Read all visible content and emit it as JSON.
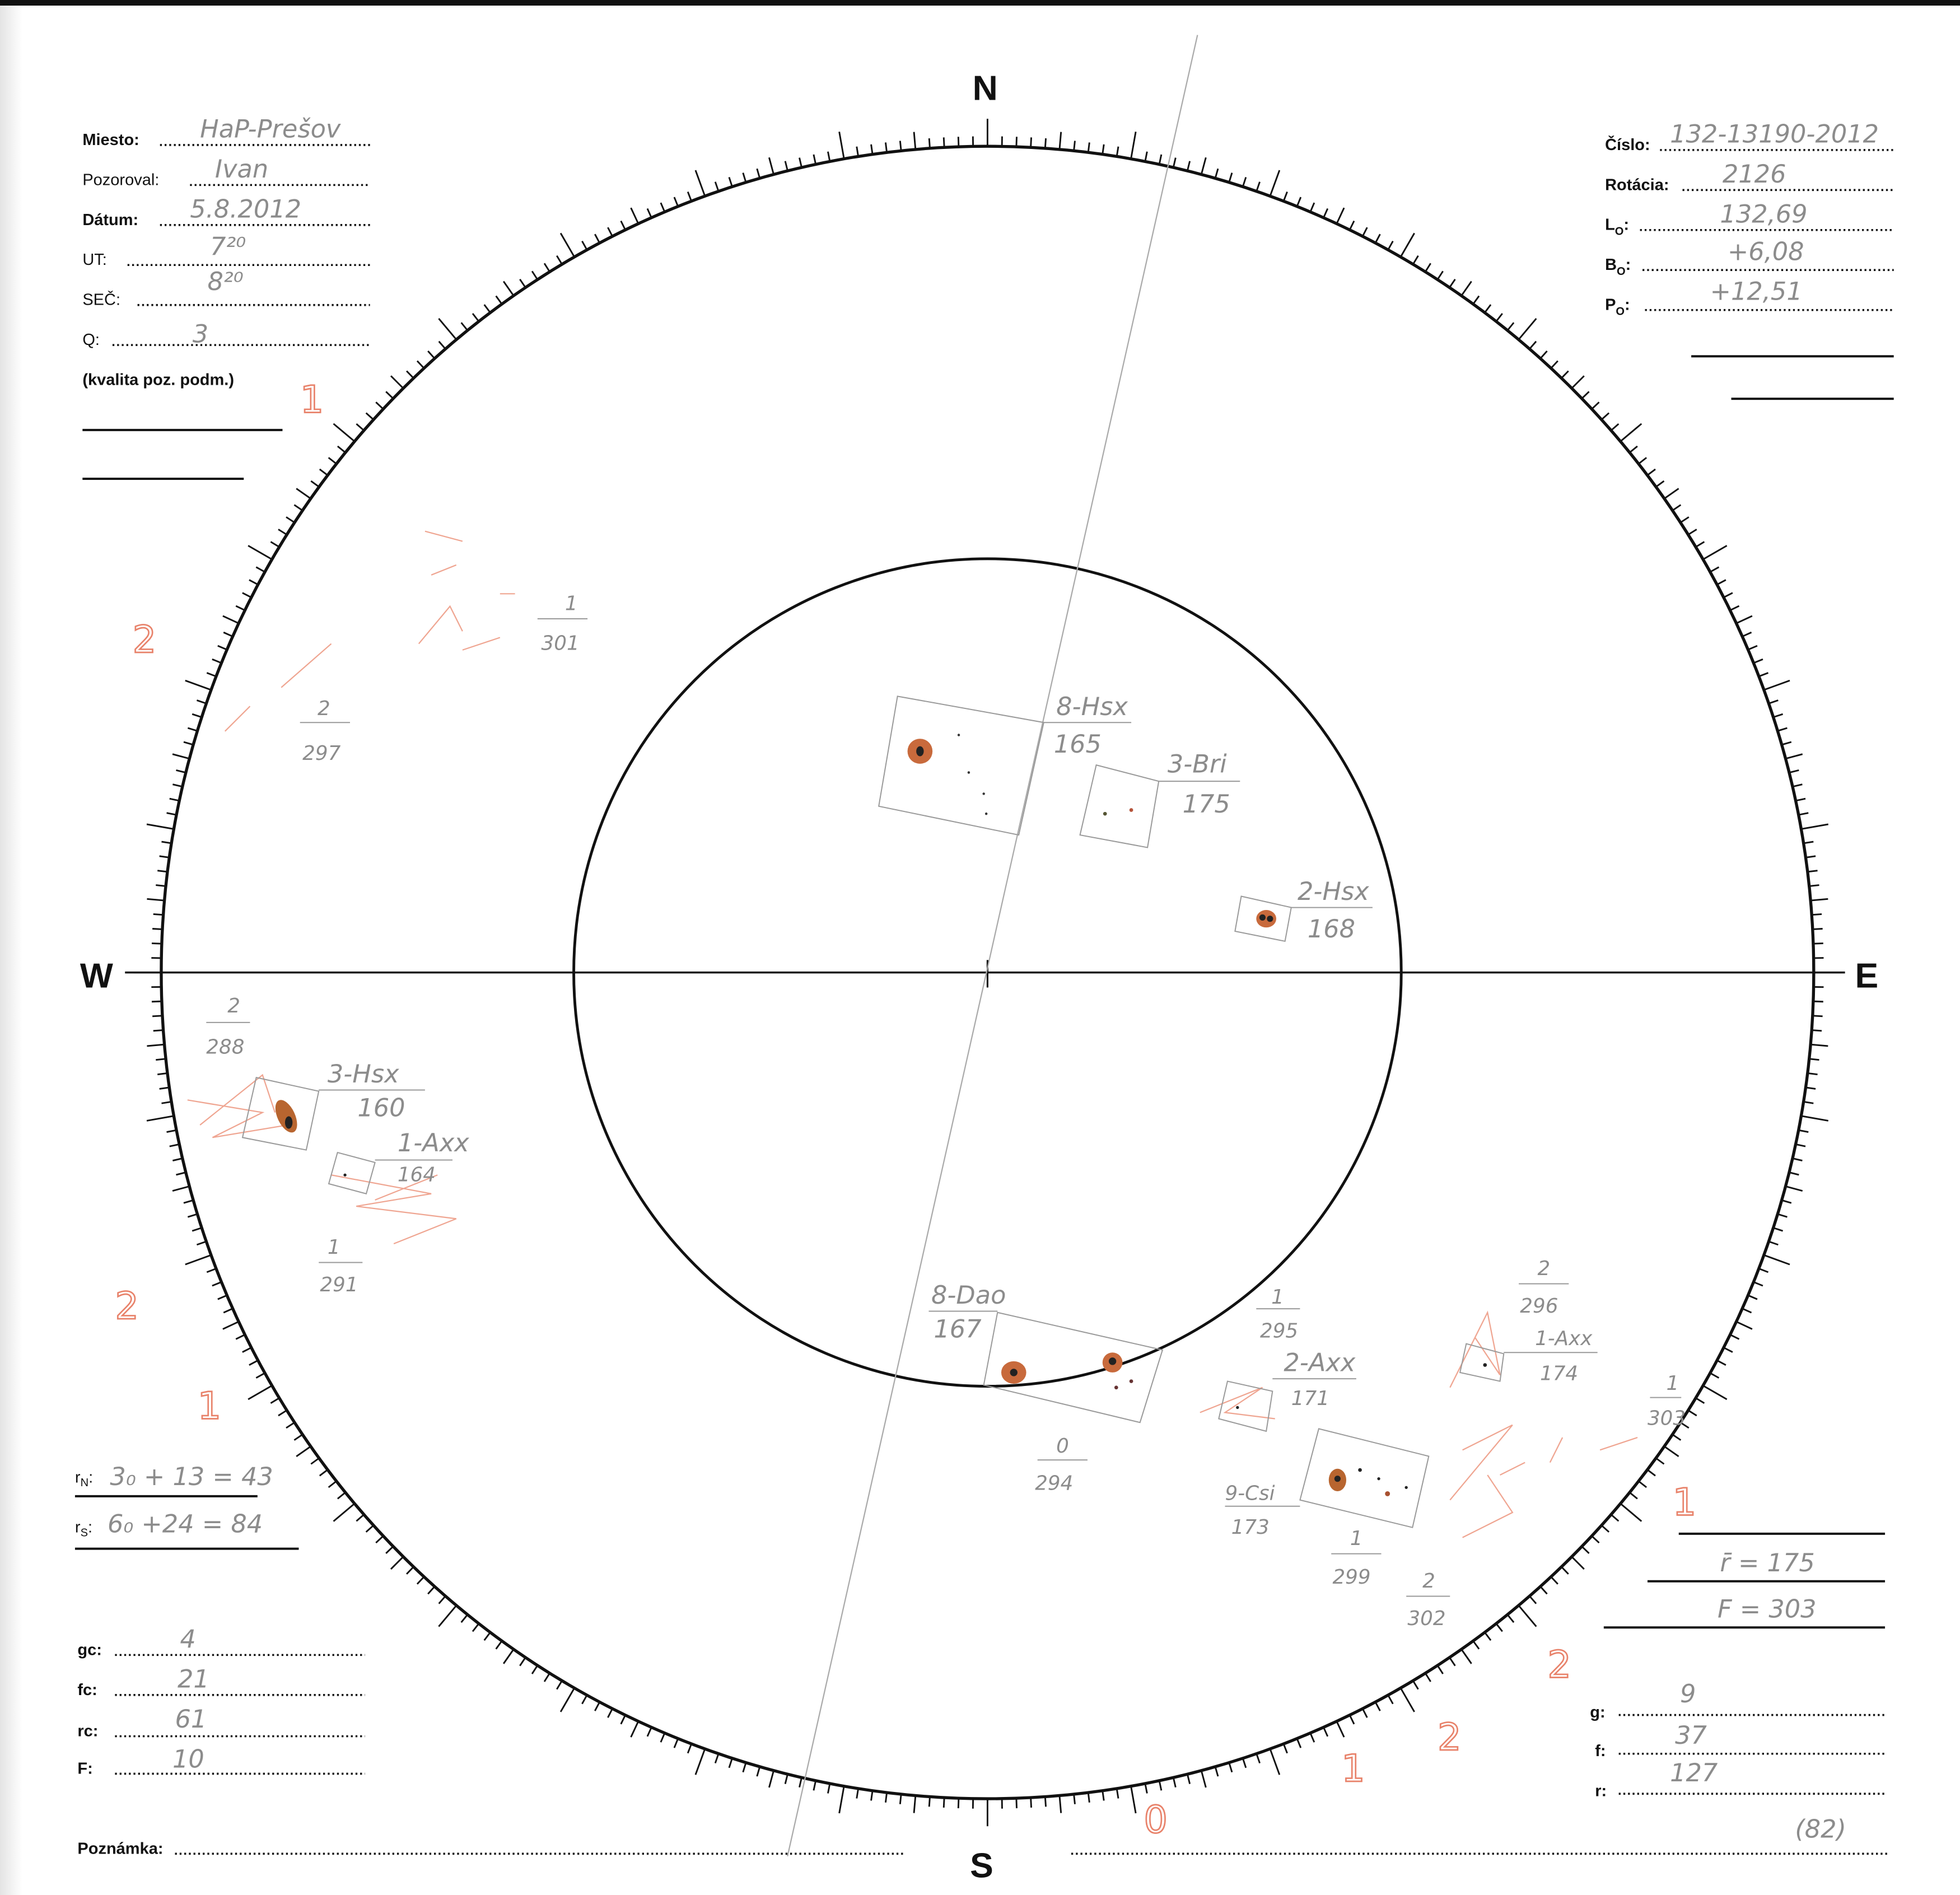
{
  "directions": {
    "north": "N",
    "south": "S",
    "west": "W",
    "east": "E"
  },
  "form_left": {
    "miesto": {
      "label": "Miesto:",
      "value": "HaP-Prešov"
    },
    "pozoroval": {
      "label": "Pozoroval:",
      "value": "Ivan"
    },
    "datum": {
      "label": "Dátum:",
      "value": "5.8.2012"
    },
    "ut": {
      "label": "UT:",
      "value": "7²⁰"
    },
    "sec": {
      "label": "SEČ:",
      "value": "8²⁰"
    },
    "q": {
      "label": "Q:",
      "value": "3"
    },
    "q_note": "(kvalita poz. podm.)"
  },
  "form_right": {
    "cislo": {
      "label": "Číslo:",
      "value": "132-13190-2012"
    },
    "rotacia": {
      "label": "Rotácia:",
      "value": "2126"
    },
    "lo": {
      "label": "L",
      "sub": "O",
      "value": "132,69"
    },
    "bo": {
      "label": "B",
      "sub": "O",
      "value": "+6,08"
    },
    "po": {
      "label": "P",
      "sub": "O",
      "value": "+12,51"
    }
  },
  "hemispheres": {
    "rn": {
      "label": "r",
      "sub": "N",
      "value": "3₀ + 13 = 43"
    },
    "rs": {
      "label": "r",
      "sub": "S",
      "value": "6₀ +24 = 84"
    }
  },
  "counts_left": {
    "gc": {
      "label": "gc:",
      "value": "4"
    },
    "fc": {
      "label": "fc:",
      "value": "21"
    },
    "rc": {
      "label": "rc:",
      "value": "61"
    },
    "F": {
      "label": "F:",
      "value": "10"
    }
  },
  "totals_right": {
    "r_mean": "r̄ = 175",
    "F": "F = 303",
    "g": {
      "label": "g:",
      "value": "9"
    },
    "f": {
      "label": "f:",
      "value": "37"
    },
    "r": {
      "label": "r:",
      "value": "127"
    },
    "note": "(82)"
  },
  "poznamka": {
    "label": "Poznámka:"
  },
  "groups": [
    {
      "class": "8-Hsx",
      "number": "165"
    },
    {
      "class": "3-Bri",
      "number": "175"
    },
    {
      "class": "2-Hsx",
      "number": "168"
    },
    {
      "class": "3-Hsx",
      "number": "160"
    },
    {
      "class": "1-Axx",
      "number": "164"
    },
    {
      "class": "8-Dao",
      "number": "167"
    },
    {
      "class": "2-Axx",
      "number": "171"
    },
    {
      "class": "1-Axx",
      "number": "174"
    },
    {
      "class": "9-Csi",
      "number": "173"
    }
  ],
  "faculae": [
    {
      "count": "1",
      "number": "301"
    },
    {
      "count": "2",
      "number": "297"
    },
    {
      "count": "2",
      "number": "288"
    },
    {
      "count": "1",
      "number": "291"
    },
    {
      "count": "0",
      "number": "294"
    },
    {
      "count": "1",
      "number": "295"
    },
    {
      "count": "2",
      "number": "296"
    },
    {
      "count": "1",
      "number": "303"
    },
    {
      "count": "1",
      "number": "299"
    },
    {
      "count": "2",
      "number": "302"
    }
  ],
  "red_marks": [
    "1",
    "2",
    "2",
    "1",
    "1",
    "2",
    "2",
    "1",
    "0"
  ],
  "colors": {
    "ink": "#111111",
    "pencil": "#8c8c8c",
    "faculae": "#e8826a",
    "penumbra": "#c86a3c",
    "umbra": "#222222"
  }
}
